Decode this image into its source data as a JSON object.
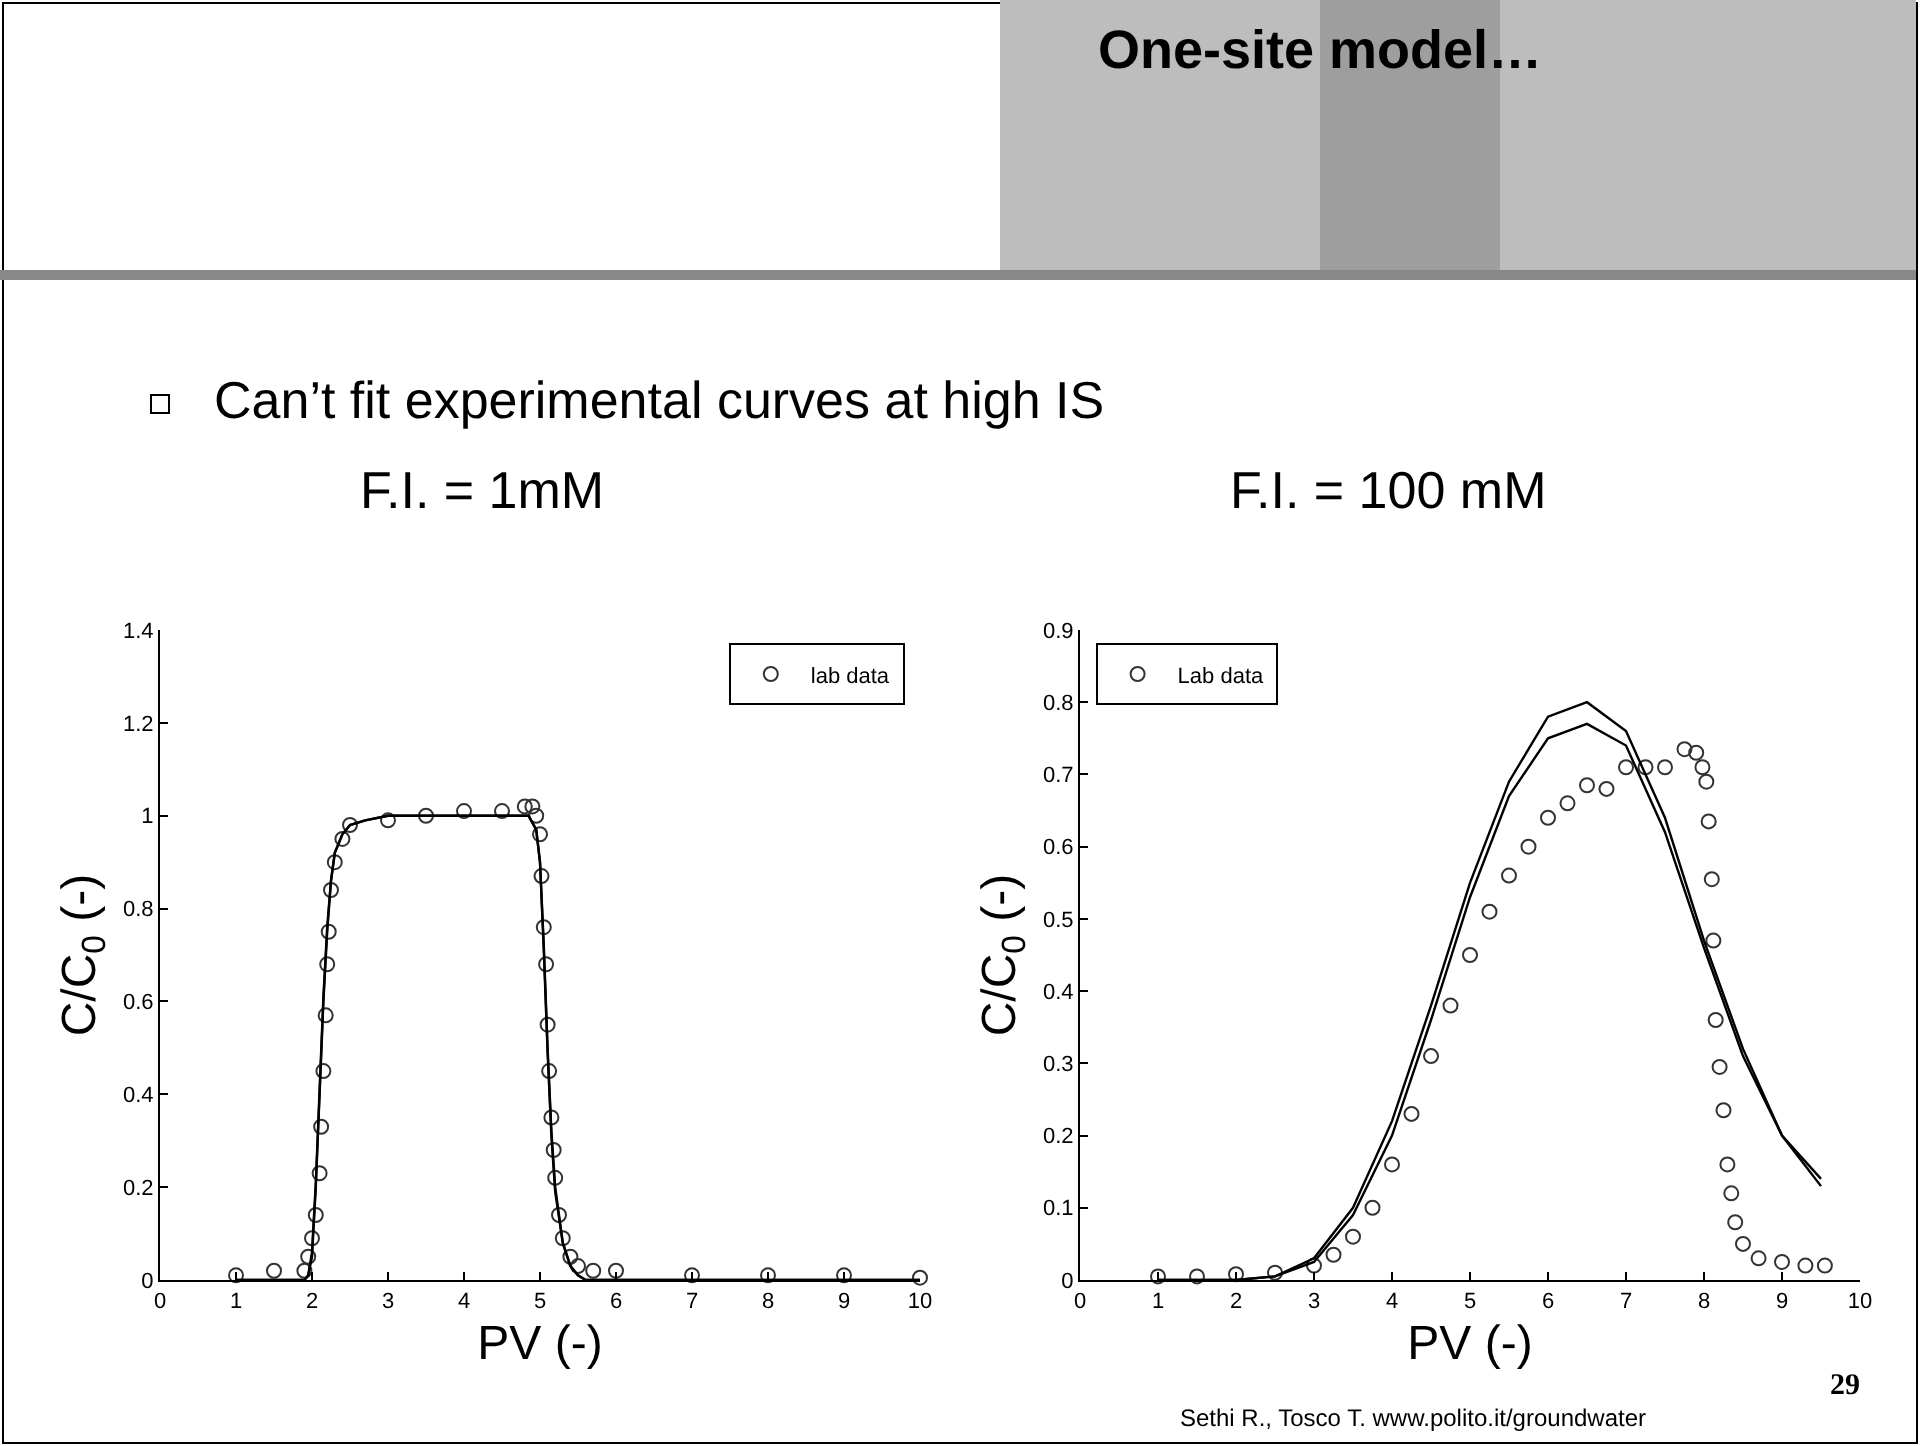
{
  "chart_data": [
    {
      "type": "scatter",
      "title": "F.I. = 1mM",
      "xlabel": "PV (-)",
      "ylabel": "C/C$_{0}$ (-)",
      "annotations": [
        "One-site model…",
        "Can’t fit experimental curves at high IS"
      ],
      "xlim": [
        0,
        10
      ],
      "xticks": [
        0,
        1,
        2,
        3,
        4,
        5,
        6,
        7,
        8,
        9,
        10
      ],
      "ylim": [
        0,
        1.4
      ],
      "yticks": [
        0,
        0.2,
        0.4,
        0.6,
        0.8,
        1,
        1.2,
        1.4
      ],
      "grid": false,
      "legend": "top right",
      "series": [
        {
          "name": "lab data",
          "marker": "circle",
          "color": "#333333",
          "x": [
            1,
            1.5,
            1.9,
            1.95,
            2.0,
            2.05,
            2.1,
            2.12,
            2.15,
            2.18,
            2.2,
            2.22,
            2.25,
            2.3,
            2.4,
            2.5,
            3,
            3.5,
            4,
            4.5,
            4.8,
            4.9,
            4.95,
            5.0,
            5.02,
            5.05,
            5.08,
            5.1,
            5.12,
            5.15,
            5.18,
            5.2,
            5.25,
            5.3,
            5.4,
            5.5,
            5.7,
            6,
            7,
            8,
            9,
            10
          ],
          "values": [
            0.01,
            0.02,
            0.02,
            0.05,
            0.09,
            0.14,
            0.23,
            0.33,
            0.45,
            0.57,
            0.68,
            0.75,
            0.84,
            0.9,
            0.95,
            0.98,
            0.99,
            1.0,
            1.01,
            1.01,
            1.02,
            1.02,
            1.0,
            0.96,
            0.87,
            0.76,
            0.68,
            0.55,
            0.45,
            0.35,
            0.28,
            0.22,
            0.14,
            0.09,
            0.05,
            0.03,
            0.02,
            0.02,
            0.01,
            0.01,
            0.01,
            0.005
          ]
        },
        {
          "type": "line",
          "marker": "none",
          "line_style": "solid",
          "color": "#000000",
          "x": [
            1,
            1.9,
            1.95,
            2.0,
            2.05,
            2.1,
            2.15,
            2.2,
            2.25,
            2.3,
            2.4,
            2.5,
            2.7,
            3,
            4,
            4.85,
            4.95,
            5.0,
            5.05,
            5.1,
            5.15,
            5.2,
            5.3,
            5.4,
            5.5,
            5.6,
            6,
            10
          ],
          "values": [
            0,
            0,
            0.01,
            0.05,
            0.2,
            0.4,
            0.6,
            0.75,
            0.86,
            0.92,
            0.96,
            0.98,
            0.99,
            1.0,
            1.0,
            1.0,
            0.97,
            0.9,
            0.72,
            0.5,
            0.32,
            0.2,
            0.08,
            0.03,
            0.01,
            0,
            0,
            0
          ]
        },
        {
          "type": "line",
          "marker": "none",
          "line_style": "solid",
          "color": "#000000",
          "x": [
            1,
            1.9,
            1.95,
            2.0,
            2.05,
            2.1,
            2.15,
            2.2,
            2.25,
            2.3,
            2.4,
            2.5,
            2.7,
            3,
            4,
            4.85,
            4.95,
            5.0,
            5.05,
            5.1,
            5.15,
            5.2,
            5.3,
            5.4,
            5.5,
            5.6,
            6,
            10
          ],
          "values": [
            0,
            0,
            0.01,
            0.06,
            0.21,
            0.41,
            0.61,
            0.76,
            0.86,
            0.92,
            0.96,
            0.98,
            0.99,
            1.0,
            1.0,
            1.0,
            0.97,
            0.9,
            0.71,
            0.49,
            0.31,
            0.19,
            0.08,
            0.03,
            0.01,
            0,
            0,
            0
          ]
        }
      ]
    },
    {
      "type": "scatter",
      "title": "F.I. = 100 mM",
      "xlabel": "PV (-)",
      "ylabel": "C/C$_{0}$ (-)",
      "annotations": [
        "Sethi R.,  Tosco T. www.polito.it/groundwater",
        "29"
      ],
      "xlim": [
        0,
        10
      ],
      "xticks": [
        0,
        1,
        2,
        3,
        4,
        5,
        6,
        7,
        8,
        9,
        10
      ],
      "ylim": [
        0,
        0.9
      ],
      "yticks": [
        0,
        0.1,
        0.2,
        0.3,
        0.4,
        0.5,
        0.6,
        0.7,
        0.8,
        0.9
      ],
      "grid": false,
      "legend": "top left",
      "series": [
        {
          "name": "Lab data",
          "marker": "circle",
          "color": "#333333",
          "x": [
            1,
            1.5,
            2,
            2.5,
            3,
            3.25,
            3.5,
            3.75,
            4,
            4.25,
            4.5,
            4.75,
            5,
            5.25,
            5.5,
            5.75,
            6,
            6.25,
            6.5,
            6.75,
            7,
            7.25,
            7.5,
            7.75,
            7.9,
            7.98,
            8.03,
            8.06,
            8.1,
            8.12,
            8.15,
            8.2,
            8.25,
            8.3,
            8.35,
            8.4,
            8.5,
            8.7,
            9,
            9.3,
            9.55
          ],
          "values": [
            0.005,
            0.005,
            0.008,
            0.01,
            0.02,
            0.035,
            0.06,
            0.1,
            0.16,
            0.23,
            0.31,
            0.38,
            0.45,
            0.51,
            0.56,
            0.6,
            0.64,
            0.66,
            0.685,
            0.68,
            0.71,
            0.71,
            0.71,
            0.735,
            0.73,
            0.71,
            0.69,
            0.635,
            0.555,
            0.47,
            0.36,
            0.295,
            0.235,
            0.16,
            0.12,
            0.08,
            0.05,
            0.03,
            0.025,
            0.02,
            0.02
          ]
        },
        {
          "type": "line",
          "marker": "none",
          "line_style": "solid",
          "color": "#000000",
          "x": [
            1,
            2,
            2.5,
            3,
            3.5,
            4,
            4.5,
            5,
            5.5,
            6,
            6.5,
            7,
            7.5,
            8,
            8.5,
            9,
            9.5
          ],
          "values": [
            0,
            0,
            0.005,
            0.03,
            0.1,
            0.22,
            0.38,
            0.55,
            0.69,
            0.78,
            0.8,
            0.76,
            0.64,
            0.47,
            0.32,
            0.2,
            0.13
          ]
        },
        {
          "type": "line",
          "marker": "none",
          "line_style": "solid",
          "color": "#000000",
          "x": [
            1,
            2,
            2.5,
            3,
            3.5,
            4,
            4.5,
            5,
            5.5,
            6,
            6.5,
            7,
            7.5,
            8,
            8.5,
            9,
            9.5
          ],
          "values": [
            0,
            0,
            0.005,
            0.025,
            0.09,
            0.2,
            0.36,
            0.53,
            0.67,
            0.75,
            0.77,
            0.74,
            0.62,
            0.46,
            0.31,
            0.2,
            0.14
          ]
        }
      ]
    }
  ]
}
